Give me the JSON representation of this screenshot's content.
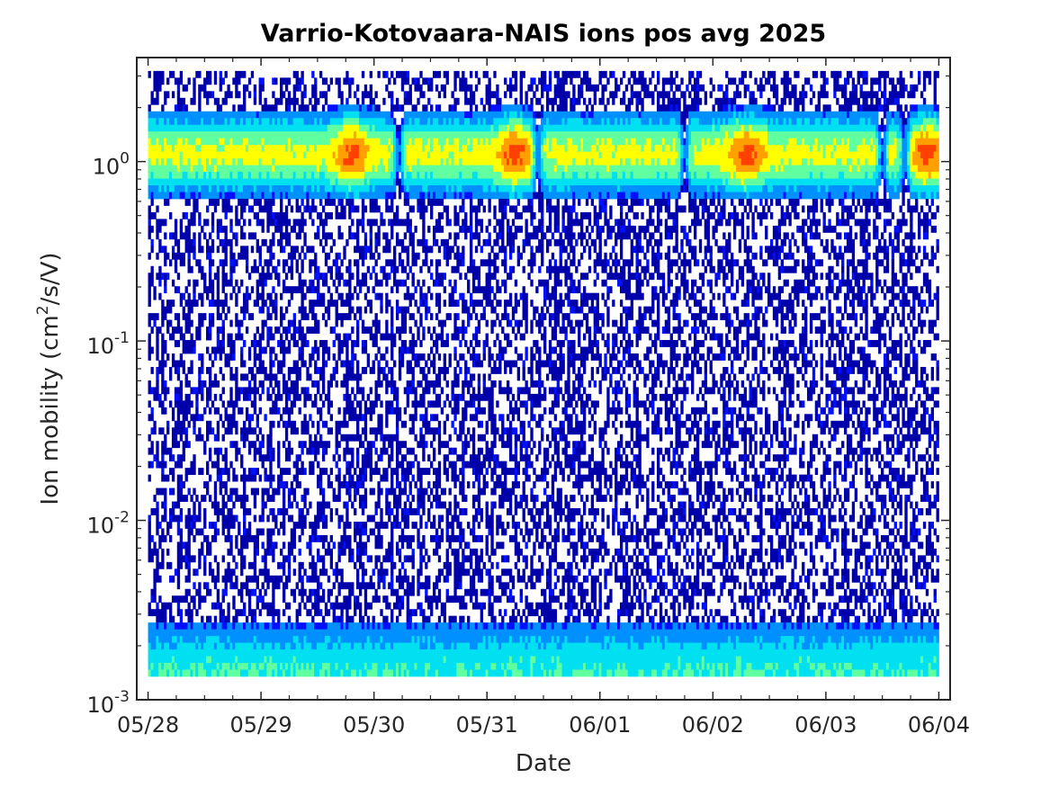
{
  "chart_data": {
    "type": "heatmap",
    "title": "Varrio-Kotovaara-NAIS ions pos avg 2025",
    "xlabel": "Date",
    "ylabel": "Ion mobility (cm2/s/V)",
    "ylabel_parts": {
      "before": "Ion mobility (cm",
      "sup": "2",
      "after": "/s/V)"
    },
    "y_scale": "log",
    "ylim": [
      0.001,
      3.8
    ],
    "y_data_range": [
      0.00135,
      3.2
    ],
    "x_ticks": [
      "05/28",
      "05/29",
      "05/30",
      "05/31",
      "06/01",
      "06/02",
      "06/03",
      "06/04"
    ],
    "xlim_days": [
      -0.1,
      7.1
    ],
    "y_ticks": [
      {
        "value": 1,
        "base": "10",
        "exp": "0"
      },
      {
        "value": 0.1,
        "base": "10",
        "exp": "-1"
      },
      {
        "value": 0.01,
        "base": "10",
        "exp": "-2"
      },
      {
        "value": 0.001,
        "base": "10",
        "exp": "-3"
      }
    ],
    "colormap": [
      "#0000aa",
      "#0010ff",
      "#0090ff",
      "#00e0f0",
      "#60ffa0",
      "#ffff00",
      "#ffa000",
      "#ff4000"
    ],
    "band": {
      "center_mobility": 1.1,
      "description": "persistent cluster-ion band"
    },
    "hotspots_days": [
      1.8,
      3.25,
      5.3,
      6.9
    ],
    "gaps_days": [
      2.22,
      3.45,
      4.75,
      6.5,
      6.7
    ]
  }
}
